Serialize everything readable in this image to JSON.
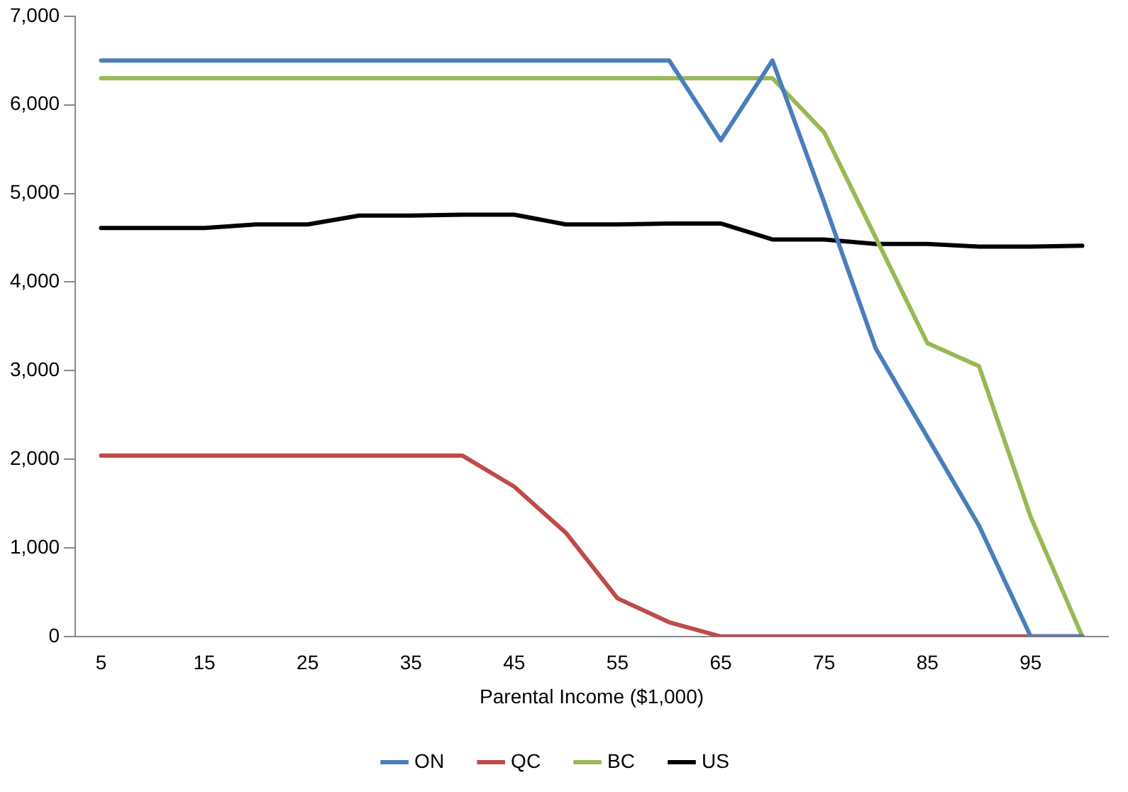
{
  "chart_data": {
    "type": "line",
    "xlabel": "Parental Income ($1,000)",
    "categories": [
      "5",
      null,
      "15",
      null,
      "25",
      null,
      "35",
      null,
      "45",
      null,
      "55",
      null,
      "65",
      null,
      "75",
      null,
      "85",
      null,
      "95",
      null
    ],
    "series": [
      {
        "name": "ON",
        "color": "#4a7ebb",
        "values": [
          6500,
          6500,
          6500,
          6500,
          6500,
          6500,
          6500,
          6500,
          6500,
          6500,
          6500,
          6500,
          5600,
          6500,
          4900,
          3250,
          2250,
          1250,
          0,
          0
        ]
      },
      {
        "name": "QC",
        "color": "#be4b48",
        "values": [
          2040,
          2040,
          2040,
          2040,
          2040,
          2040,
          2040,
          2040,
          1690,
          1170,
          430,
          160,
          0,
          0,
          0,
          0,
          0,
          0,
          0,
          0
        ]
      },
      {
        "name": "BC",
        "color": "#98b954",
        "values": [
          6300,
          6300,
          6300,
          6300,
          6300,
          6300,
          6300,
          6300,
          6300,
          6300,
          6300,
          6300,
          6300,
          6300,
          5690,
          4500,
          3310,
          3050,
          1350,
          0
        ]
      },
      {
        "name": "US",
        "color": "#000000",
        "values": [
          4610,
          4610,
          4610,
          4650,
          4650,
          4750,
          4750,
          4760,
          4760,
          4650,
          4650,
          4660,
          4660,
          4480,
          4480,
          4430,
          4430,
          4400,
          4400,
          4410
        ]
      }
    ],
    "ylim": [
      0,
      7000
    ],
    "yticks": [
      0,
      {
        "value": 1000,
        "label": "1,000"
      },
      {
        "value": 2000,
        "label": "2,000"
      },
      {
        "value": 3000,
        "label": "3,000"
      },
      {
        "value": 4000,
        "label": "4,000"
      },
      {
        "value": 5000,
        "label": "5,000"
      },
      {
        "value": 6000,
        "label": "6,000"
      },
      {
        "value": 7000,
        "label": "7,000"
      }
    ],
    "grid": false,
    "legend": "bottom",
    "marker": "none",
    "line_style": "solid"
  }
}
